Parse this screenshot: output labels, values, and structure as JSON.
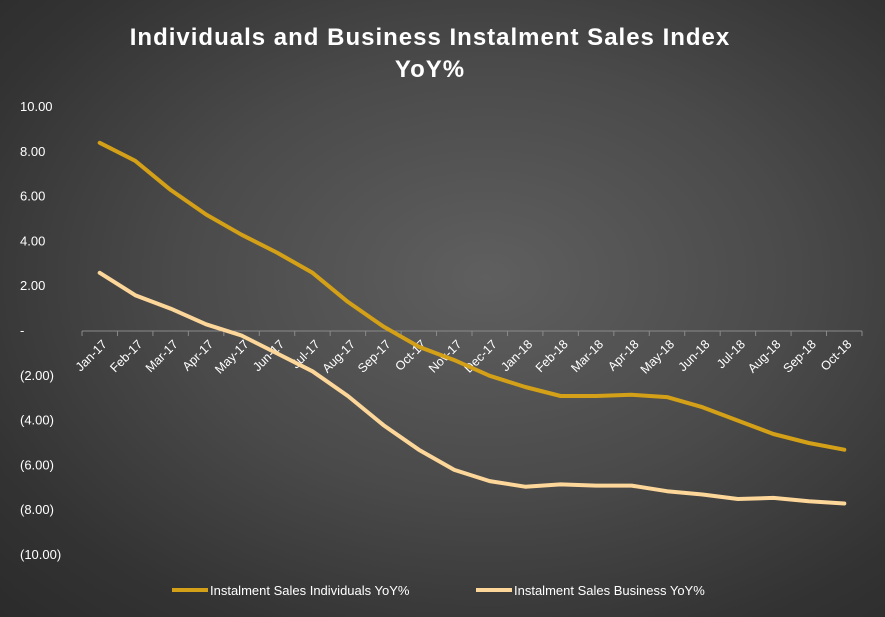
{
  "chart_data": {
    "type": "line",
    "title_line1": "Individuals and Business Instalment Sales Index",
    "title_line2": "YoY%",
    "xlabel": "",
    "ylabel": "",
    "ylim": [
      -10,
      10
    ],
    "y_ticks": [
      10,
      8,
      6,
      4,
      2,
      0,
      -2,
      -4,
      -6,
      -8,
      -10
    ],
    "y_tick_labels": [
      "10.00",
      "8.00",
      "6.00",
      "4.00",
      "2.00",
      "-",
      "(2.00)",
      "(4.00)",
      "(6.00)",
      "(8.00)",
      "(10.00)"
    ],
    "categories": [
      "Jan-17",
      "Feb-17",
      "Mar-17",
      "Apr-17",
      "May-17",
      "Jun-17",
      "Jul-17",
      "Aug-17",
      "Sep-17",
      "Oct-17",
      "Nov-17",
      "Dec-17",
      "Jan-18",
      "Feb-18",
      "Mar-18",
      "Apr-18",
      "May-18",
      "Jun-18",
      "Jul-18",
      "Aug-18",
      "Sep-18",
      "Oct-18"
    ],
    "series": [
      {
        "name": "Instalment Sales Individuals YoY%",
        "color": "#d4a017",
        "values": [
          8.4,
          7.6,
          6.3,
          5.2,
          4.3,
          3.5,
          2.6,
          1.3,
          0.2,
          -0.7,
          -1.3,
          -2.0,
          -2.5,
          -2.9,
          -2.9,
          -2.85,
          -2.95,
          -3.4,
          -4.0,
          -4.6,
          -5.0,
          -5.3
        ]
      },
      {
        "name": "Instalment Sales Business YoY%",
        "color": "#fdd69a",
        "values": [
          2.6,
          1.6,
          1.0,
          0.3,
          -0.2,
          -1.0,
          -1.8,
          -2.9,
          -4.2,
          -5.3,
          -6.2,
          -6.7,
          -6.95,
          -6.85,
          -6.9,
          -6.9,
          -7.15,
          -7.3,
          -7.5,
          -7.45,
          -7.6,
          -7.7
        ]
      }
    ],
    "legend_position": "bottom"
  }
}
